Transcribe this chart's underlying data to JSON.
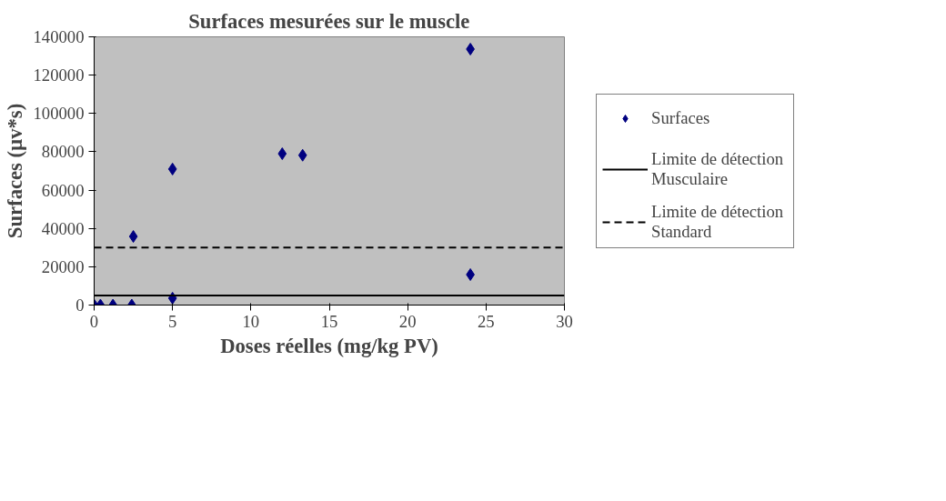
{
  "chart_data": {
    "type": "scatter",
    "title": "Surfaces mesurées sur le muscle",
    "xlabel": "Doses réelles (mg/kg PV)",
    "ylabel": "Surfaces (µv*s)",
    "series": [
      {
        "name": "Surfaces",
        "color": "#000080",
        "x": [
          0,
          0.4,
          1.2,
          2.4,
          2.5,
          5,
          5,
          12,
          13.3,
          24,
          24
        ],
        "values": [
          0,
          0,
          0,
          0,
          35800,
          71000,
          3600,
          79000,
          78200,
          133600,
          15900
        ]
      }
    ],
    "ref_lines": [
      {
        "axis": "y",
        "value": 5000,
        "label": "Limite de détection Musculaire",
        "color": "#000000",
        "line_style": "solid"
      },
      {
        "axis": "y",
        "value": 30000,
        "label": "Limite de détection Standard",
        "color": "#000000",
        "line_style": "dashed"
      }
    ],
    "xlim": [
      0,
      30
    ],
    "xticks": [
      0,
      5,
      10,
      15,
      20,
      25,
      30
    ],
    "ylim": [
      0,
      140000
    ],
    "yticks": [
      0,
      20000,
      40000,
      60000,
      80000,
      100000,
      120000,
      140000
    ],
    "marker": "diamond",
    "grid": false,
    "legend": "right"
  }
}
